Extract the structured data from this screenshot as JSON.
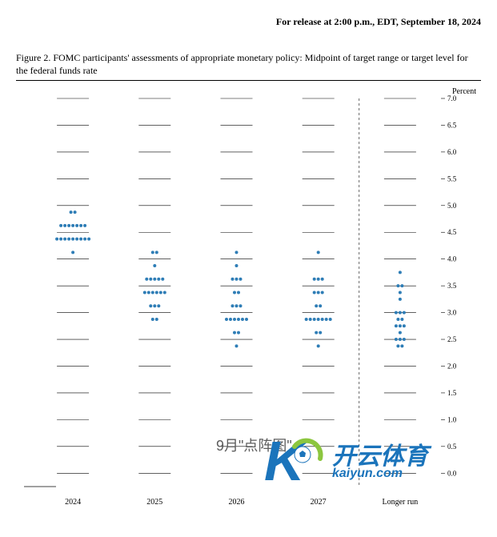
{
  "release_text": "For release at 2:00 p.m., EDT, September 18, 2024",
  "figure_title": "Figure 2.   FOMC participants' assessments of appropriate monetary policy:   Midpoint of target range or target level for the federal funds rate",
  "chart": {
    "type": "dotplot",
    "axis_label": "Percent",
    "ylim": [
      -0.25,
      7.0
    ],
    "ytick_start": 0.0,
    "ytick_step": 0.5,
    "ytick_labels": [
      "0.0",
      "0.5",
      "1.0",
      "1.5",
      "2.0",
      "2.5",
      "3.0",
      "3.5",
      "4.0",
      "4.5",
      "5.0",
      "5.5",
      "6.0",
      "6.5",
      "7.0"
    ],
    "categories": [
      "2024",
      "2025",
      "2026",
      "2027",
      "Longer run"
    ],
    "separator_after_index": 3,
    "dot_color": "#2e7db6",
    "grid_color": "#000000",
    "background_color": "#ffffff",
    "grid_short_len": 20,
    "grid_gap_color": "#ffffff",
    "dot_radius": 2.0,
    "dot_spacing": 5.0,
    "data": {
      "2024": {
        "4.125": 1,
        "4.375": 9,
        "4.625": 7,
        "4.875": 2
      },
      "2025": {
        "2.875": 2,
        "3.125": 3,
        "3.375": 6,
        "3.625": 5,
        "3.875": 1,
        "4.125": 2
      },
      "2026": {
        "2.375": 1,
        "2.625": 2,
        "2.875": 6,
        "3.125": 3,
        "3.375": 2,
        "3.625": 3,
        "3.875": 1,
        "4.125": 1
      },
      "2027": {
        "2.375": 1,
        "2.625": 2,
        "2.875": 7,
        "3.125": 2,
        "3.375": 3,
        "3.625": 3,
        "4.125": 1
      },
      "Longer run": {
        "2.375": 2,
        "2.5": 3,
        "2.625": 1,
        "2.75": 3,
        "2.875": 2,
        "3.0": 3,
        "3.25": 1,
        "3.375": 1,
        "3.5": 2,
        "3.75": 1
      }
    }
  },
  "overlay": {
    "caption_cn": "9月\"点阵图\"",
    "brand_cn": "开云体育",
    "brand_domain": "kaiyun.com",
    "k_color": "#1b74bb",
    "o_color": "#ffffff",
    "arc_color": "#8cc63f"
  }
}
